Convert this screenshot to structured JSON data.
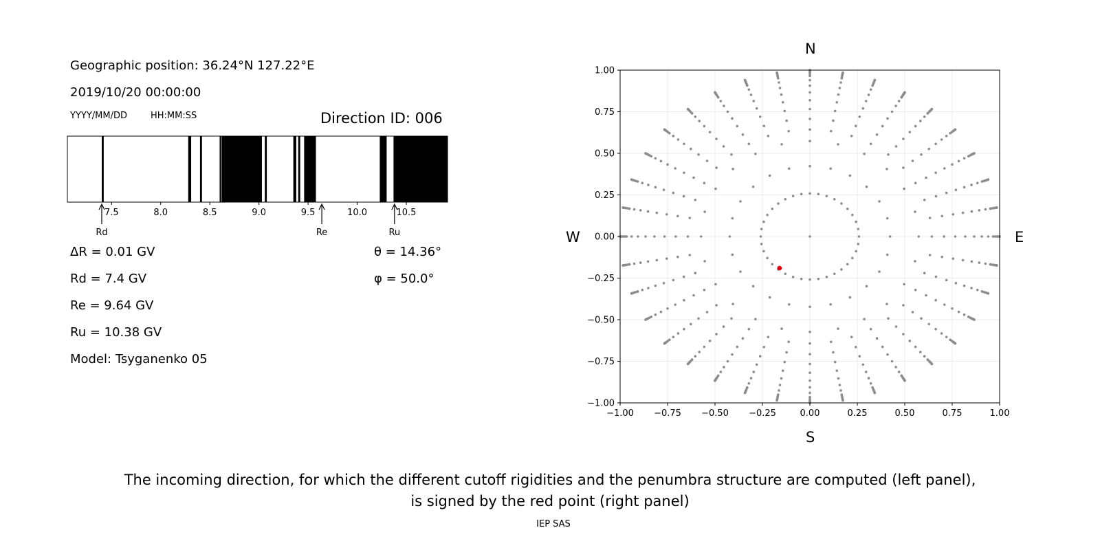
{
  "info": {
    "geo_position": "Geographic position: 36.24°N 127.22°E",
    "datetime": "2019/10/20 00:00:00",
    "date_format": "YYYY/MM/DD",
    "time_format": "HH:MM:SS",
    "direction_id": "Direction ID: 006",
    "delta_r": "ΔR = 0.01 GV",
    "rd": "Rd = 7.4 GV",
    "re": "Re = 9.64 GV",
    "ru": "Ru = 10.38 GV",
    "model": "Model: Tsyganenko 05",
    "theta": "θ = 14.36°",
    "phi": "φ = 50.0°"
  },
  "compass": {
    "north": "N",
    "south": "S",
    "west": "W",
    "east": "E"
  },
  "caption": {
    "line1": "The incoming direction, for which the different cutoff rigidities and the penumbra structure are computed (left panel),",
    "line2": "is signed by the red point (right panel)"
  },
  "footer": "IEP SAS",
  "chart_data": [
    {
      "type": "bar",
      "name": "penumbra",
      "xlim": [
        7.05,
        10.92
      ],
      "xticks": [
        7.5,
        8.0,
        8.5,
        9.0,
        9.5,
        10.0,
        10.5
      ],
      "tick_labels": [
        "7.5",
        "8.0",
        "8.5",
        "9.0",
        "9.5",
        "10.0",
        "10.5"
      ],
      "forbidden_bands": [
        [
          7.4,
          7.42
        ],
        [
          8.28,
          8.31
        ],
        [
          8.4,
          8.42
        ],
        [
          8.6,
          8.61
        ],
        [
          8.62,
          9.03
        ],
        [
          9.06,
          9.08
        ],
        [
          9.35,
          9.38
        ],
        [
          9.4,
          9.42
        ],
        [
          9.46,
          9.58
        ],
        [
          10.23,
          10.3
        ],
        [
          10.37,
          10.92
        ]
      ],
      "markers": [
        {
          "label": "Rd",
          "value": 7.4
        },
        {
          "label": "Re",
          "value": 9.64
        },
        {
          "label": "Ru",
          "value": 10.38
        }
      ],
      "colors": {
        "allowed": "#ffffff",
        "forbidden": "#000000"
      }
    },
    {
      "type": "scatter",
      "name": "direction-map",
      "xlim": [
        -1.0,
        1.0
      ],
      "ylim": [
        -1.0,
        1.0
      ],
      "xticks": [
        -1.0,
        -0.75,
        -0.5,
        -0.25,
        0.0,
        0.25,
        0.5,
        0.75,
        1.0
      ],
      "xtick_labels": [
        "−1.00",
        "−0.75",
        "−0.50",
        "−0.25",
        "0.00",
        "0.25",
        "0.50",
        "0.75",
        "1.00"
      ],
      "yticks": [
        1.0,
        0.75,
        0.5,
        0.25,
        0.0,
        -0.25,
        -0.5,
        -0.75,
        -1.0
      ],
      "ytick_labels": [
        "1.00",
        "0.75",
        "0.50",
        "0.25",
        "0.00",
        "−0.25",
        "−0.50",
        "−0.75",
        "−1.00"
      ],
      "grid": true,
      "grid_dirs": {
        "zenith_deg": [
          15,
          25,
          35,
          45,
          55,
          65,
          75,
          85,
          90
        ],
        "azimuth_step_deg": 10,
        "zenith_step_deg_outer": 5,
        "radius_formula": "sin(zenith)"
      },
      "highlight": {
        "x": -0.16,
        "y": -0.19,
        "color": "#e8000b"
      },
      "colors": {
        "grid_points": "#8c8c8c",
        "gridlines": "#ebebeb"
      }
    }
  ]
}
